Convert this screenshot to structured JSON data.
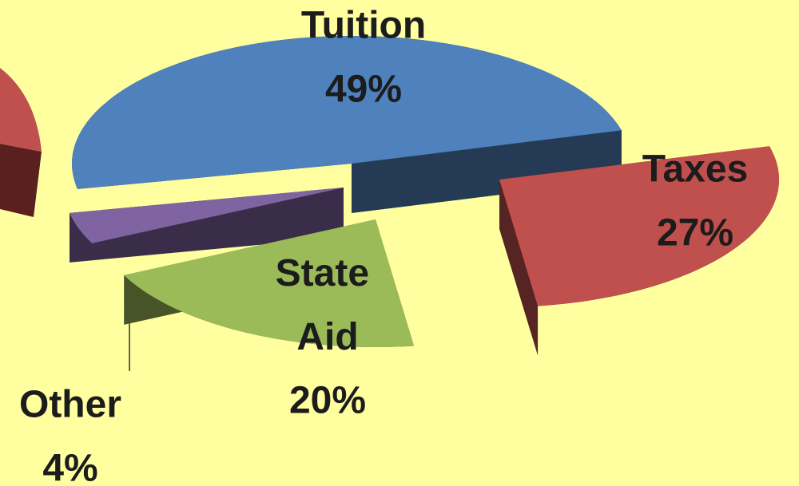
{
  "chart_data": {
    "type": "pie",
    "categories": [
      "Tuition",
      "Taxes",
      "State Aid",
      "Other"
    ],
    "values": [
      49,
      27,
      20,
      4
    ],
    "value_labels": [
      "49%",
      "27%",
      "20%",
      "4%"
    ],
    "colors": [
      "#4f81bd",
      "#c0504d",
      "#9bbb59",
      "#8064a2"
    ]
  }
}
